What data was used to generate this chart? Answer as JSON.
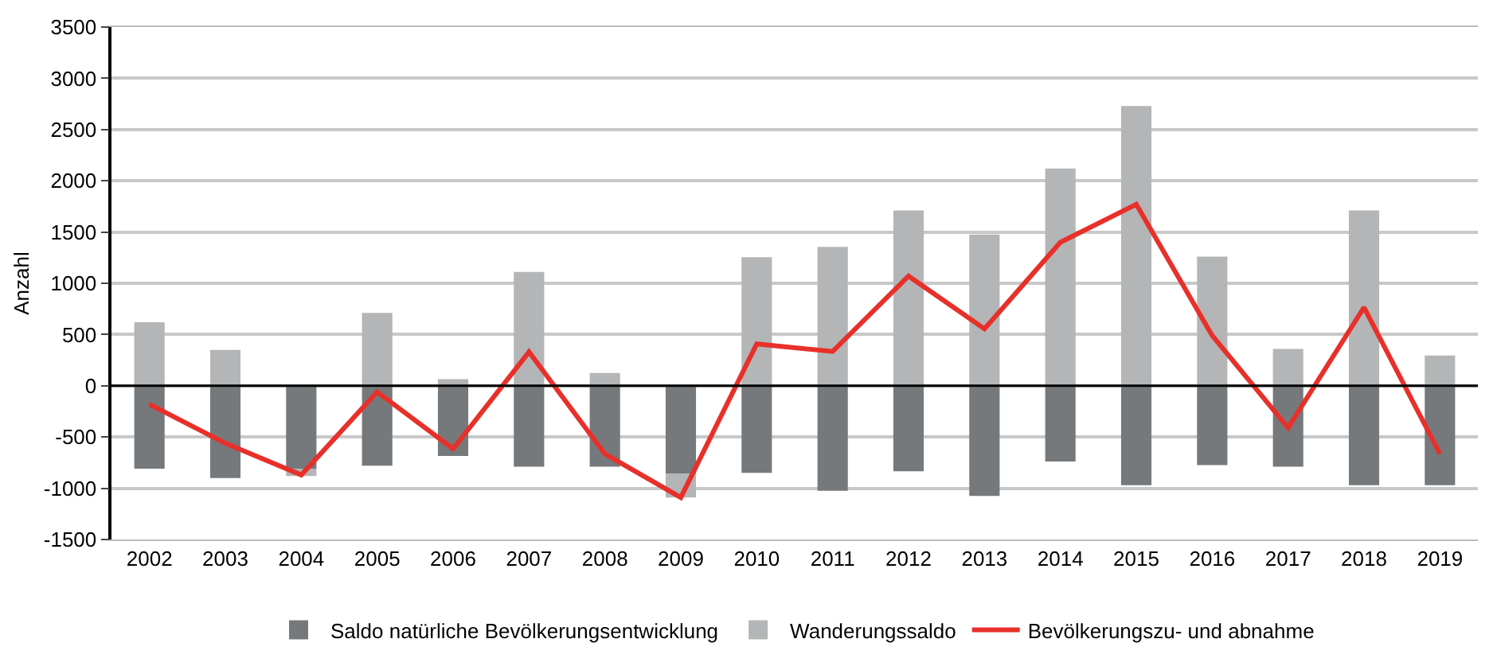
{
  "chart_data": {
    "type": "bar",
    "stacked": true,
    "ylabel": "Anzahl",
    "categories": [
      "2002",
      "2003",
      "2004",
      "2005",
      "2006",
      "2007",
      "2008",
      "2009",
      "2010",
      "2011",
      "2012",
      "2013",
      "2014",
      "2015",
      "2016",
      "2017",
      "2018",
      "2019"
    ],
    "series": [
      {
        "name": "Saldo natürliche Bevölkerungsentwicklung",
        "color": "#76797b",
        "values": [
          -810,
          -900,
          -810,
          -780,
          -685,
          -790,
          -790,
          -860,
          -850,
          -1025,
          -835,
          -1075,
          -740,
          -970,
          -775,
          -790,
          -970,
          -970
        ]
      },
      {
        "name": "Wanderungssaldo",
        "color": "#b3b5b6",
        "values": [
          620,
          350,
          -70,
          710,
          65,
          1110,
          125,
          -230,
          1255,
          1355,
          1710,
          1475,
          2120,
          2730,
          1260,
          360,
          1710,
          295
        ]
      },
      {
        "name": "Bevölkerungszu- und abnahme",
        "type": "line",
        "color": "#e8302a",
        "values": [
          -180,
          -560,
          -870,
          -60,
          -615,
          330,
          -665,
          -1090,
          408,
          335,
          1070,
          555,
          1400,
          1770,
          490,
          -410,
          765,
          -665
        ]
      }
    ],
    "ylim": [
      -1500,
      3500
    ],
    "yticks": [
      -1500,
      -1000,
      -500,
      0,
      500,
      1000,
      1500,
      2000,
      2500,
      3000,
      3500
    ],
    "grid": "y",
    "legend": "bottom",
    "marker": "none",
    "line_style": "solid",
    "ref_lines": [
      {
        "axis": "y",
        "value": 0,
        "color": "#000000"
      }
    ]
  }
}
